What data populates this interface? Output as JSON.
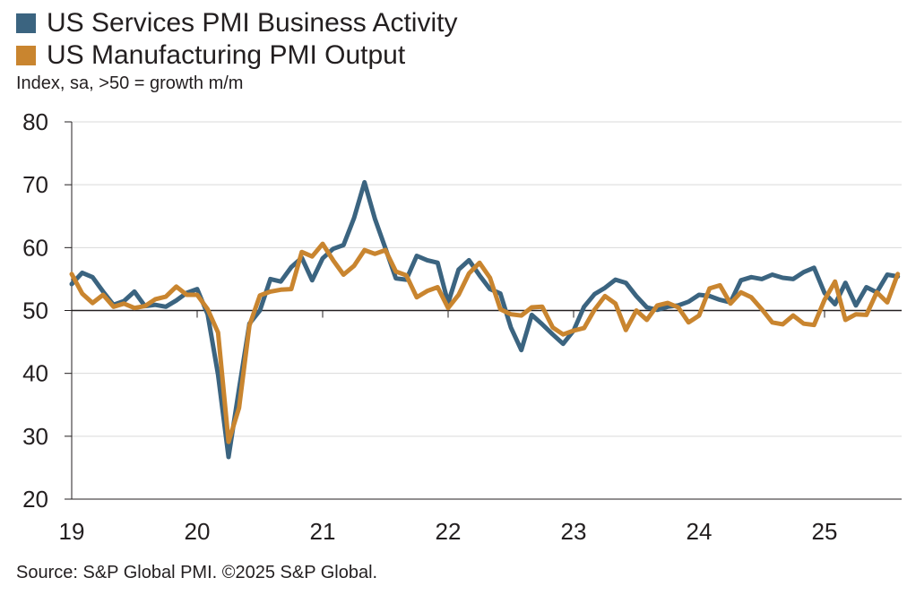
{
  "chart_data": {
    "type": "line",
    "title": "",
    "subtitle": "Index, sa, >50 = growth m/m",
    "source": "Source: S&P Global PMI. ©2025 S&P Global.",
    "xlabel": "",
    "ylabel": "",
    "ylim": [
      20,
      80
    ],
    "y_ticks": [
      20,
      30,
      40,
      50,
      60,
      70,
      80
    ],
    "x_start": "2019-01",
    "x_tick_labels": [
      "19",
      "20",
      "21",
      "22",
      "23",
      "24",
      "25"
    ],
    "grid": true,
    "reference_line": 50,
    "legend_position": "top-left",
    "series": [
      {
        "name": "US Services PMI Business Activity",
        "color": "#3b6480",
        "values": [
          54.2,
          56.0,
          55.3,
          53.0,
          50.9,
          51.5,
          53.0,
          50.7,
          50.9,
          50.6,
          51.6,
          52.8,
          53.4,
          49.4,
          39.8,
          26.7,
          37.5,
          47.9,
          50.0,
          55.0,
          54.6,
          56.9,
          58.4,
          54.8,
          58.3,
          59.8,
          60.4,
          64.7,
          70.4,
          64.6,
          59.9,
          55.1,
          54.9,
          58.7,
          58.0,
          57.6,
          51.2,
          56.5,
          58.0,
          55.6,
          53.4,
          52.7,
          47.3,
          43.7,
          49.3,
          47.8,
          46.2,
          44.7,
          46.8,
          50.6,
          52.6,
          53.6,
          54.9,
          54.4,
          52.3,
          50.5,
          50.1,
          50.6,
          50.8,
          51.4,
          52.5,
          52.3,
          51.7,
          51.3,
          54.8,
          55.3,
          55.0,
          55.7,
          55.2,
          55.0,
          56.1,
          56.8,
          52.8,
          51.0,
          54.4,
          50.8,
          53.7,
          52.9,
          55.7,
          55.4
        ]
      },
      {
        "name": "US Manufacturing PMI Output",
        "color": "#c9852f",
        "values": [
          55.8,
          52.7,
          51.2,
          52.5,
          50.6,
          51.1,
          50.4,
          50.7,
          51.8,
          52.2,
          53.8,
          52.5,
          52.5,
          50.2,
          46.5,
          29.1,
          34.5,
          47.6,
          52.4,
          53.0,
          53.3,
          53.4,
          59.3,
          58.6,
          60.6,
          58.0,
          55.7,
          57.1,
          59.6,
          59.0,
          59.6,
          56.2,
          55.6,
          52.1,
          53.1,
          53.7,
          50.4,
          52.5,
          55.9,
          57.6,
          55.2,
          50.2,
          49.4,
          49.2,
          50.5,
          50.6,
          47.3,
          46.2,
          46.8,
          47.2,
          50.1,
          52.3,
          51.1,
          46.9,
          50.0,
          48.5,
          50.8,
          51.2,
          50.5,
          48.1,
          49.2,
          53.5,
          54.0,
          51.1,
          52.9,
          52.1,
          50.2,
          48.1,
          47.8,
          49.2,
          47.9,
          47.7,
          51.7,
          54.6,
          48.5,
          49.4,
          49.3,
          52.9,
          51.3,
          55.8
        ]
      }
    ]
  }
}
